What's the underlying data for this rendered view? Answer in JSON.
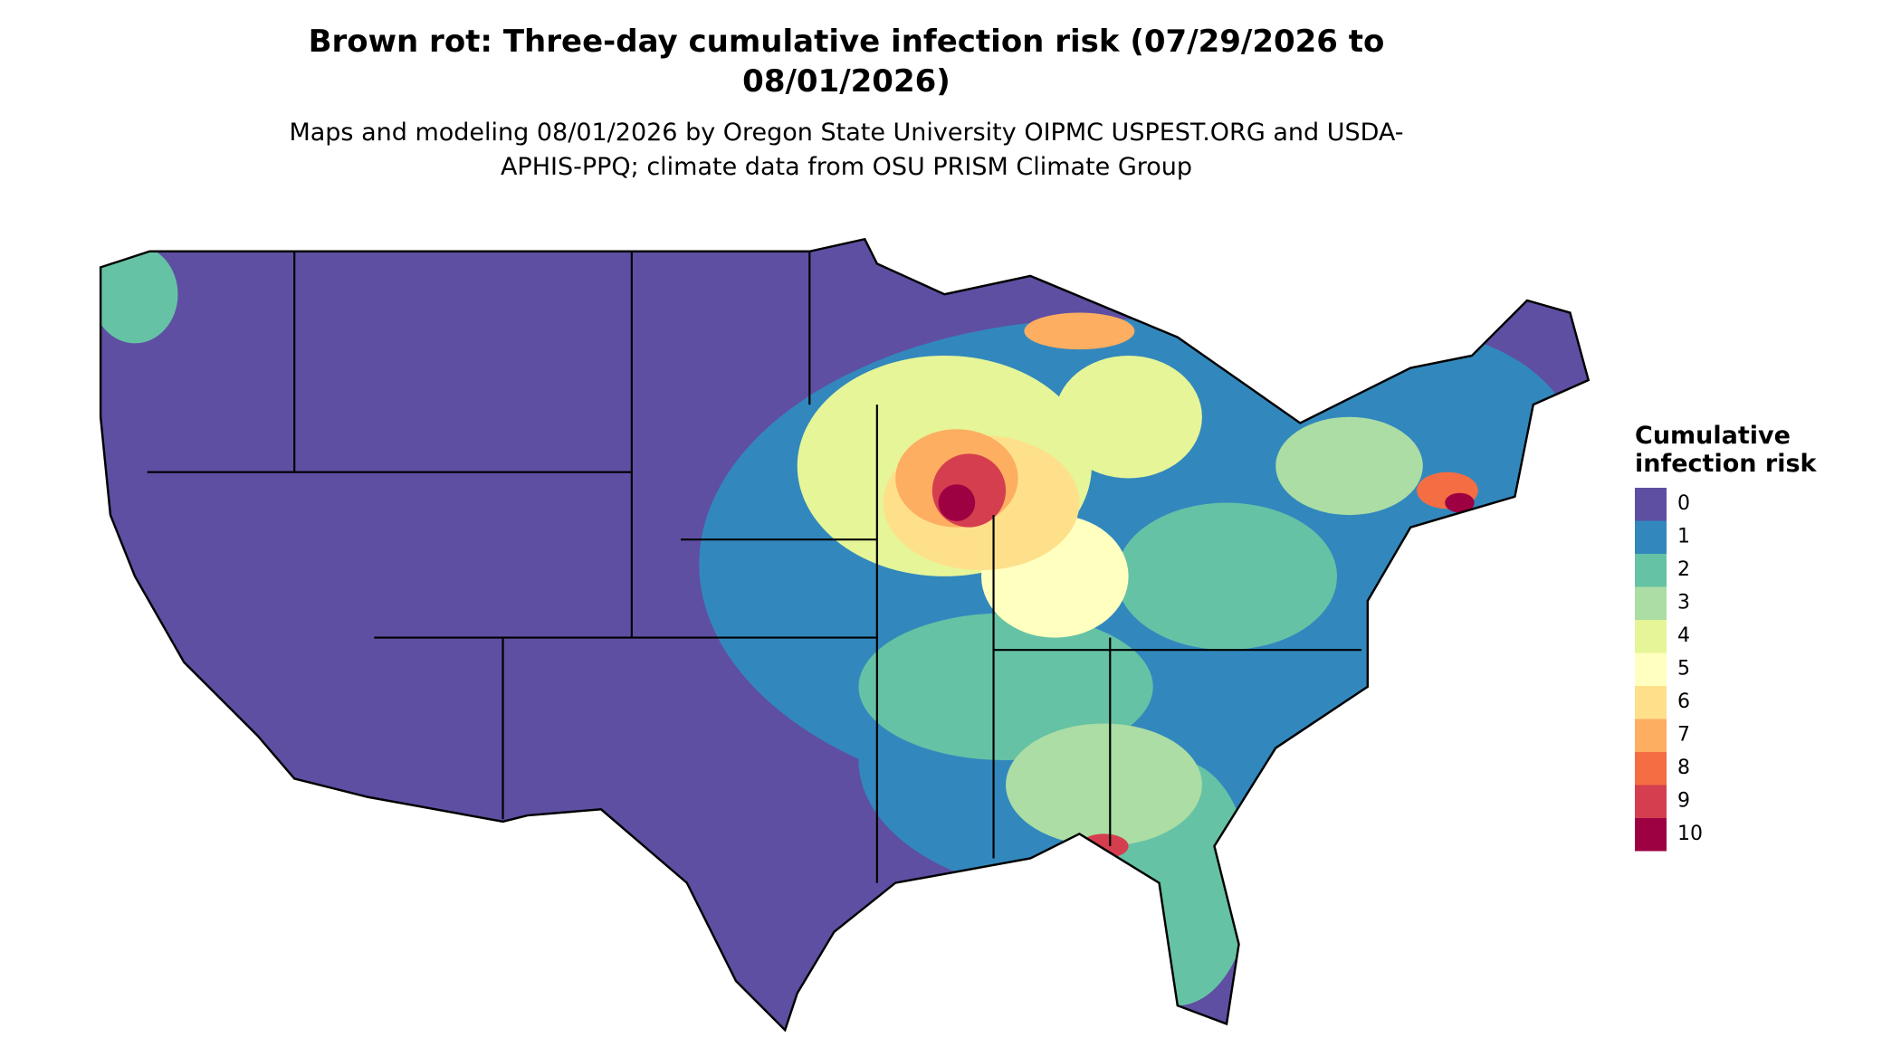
{
  "title": "Brown rot: Three-day cumulative infection risk (07/29/2026 to 08/01/2026)",
  "subtitle": "Maps and modeling 08/01/2026 by Oregon State University OIPMC USPEST.ORG and USDA-APHIS-PPQ; climate data from OSU PRISM Climate Group",
  "legend": {
    "title": "Cumulative infection risk",
    "items": [
      {
        "label": 0,
        "color": "#5e4fa2"
      },
      {
        "label": 1,
        "color": "#3288bd"
      },
      {
        "label": 2,
        "color": "#66c2a5"
      },
      {
        "label": 3,
        "color": "#abdda4"
      },
      {
        "label": 4,
        "color": "#e6f598"
      },
      {
        "label": 5,
        "color": "#ffffbf"
      },
      {
        "label": 6,
        "color": "#fee08b"
      },
      {
        "label": 7,
        "color": "#fdae61"
      },
      {
        "label": 8,
        "color": "#f46d43"
      },
      {
        "label": 9,
        "color": "#d53e4f"
      },
      {
        "label": 10,
        "color": "#9e0142"
      }
    ]
  }
}
